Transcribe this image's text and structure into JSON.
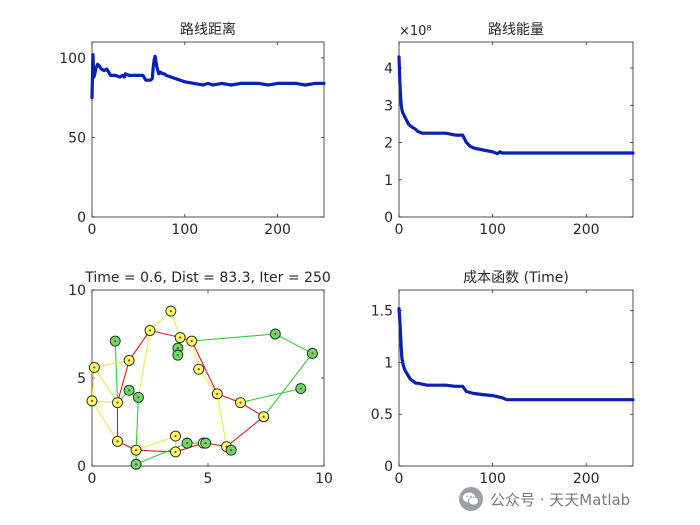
{
  "chart_data": [
    {
      "type": "line",
      "title": "路线距离",
      "xlim": [
        0,
        250
      ],
      "ylim": [
        0,
        110
      ],
      "xticks": [
        0,
        100,
        200
      ],
      "yticks": [
        0,
        50,
        100
      ],
      "xtick_labels": [
        "0",
        "100",
        "200"
      ],
      "ytick_labels": [
        "0",
        "50",
        "100"
      ],
      "exponent_label": "",
      "color": "#0a1fb5",
      "series": [
        {
          "x": [
            0,
            1,
            2,
            3,
            4,
            6,
            8,
            10,
            13,
            16,
            20,
            25,
            30,
            33,
            35,
            36,
            40,
            45,
            50,
            55,
            58,
            60,
            63,
            65,
            66,
            67,
            68,
            70,
            72,
            74,
            76,
            78,
            80,
            85,
            90,
            100,
            110,
            120,
            125,
            130,
            140,
            150,
            160,
            170,
            180,
            190,
            200,
            210,
            220,
            230,
            240,
            250
          ],
          "y": [
            75,
            102,
            88,
            90,
            93,
            96,
            95,
            93,
            92,
            93,
            89,
            89,
            88,
            89,
            88,
            90,
            89,
            89,
            89,
            89,
            86,
            86,
            86,
            87,
            94,
            99,
            101,
            94,
            90,
            91,
            90,
            90,
            89,
            88,
            87,
            85,
            84,
            83,
            84,
            83,
            84,
            83,
            84,
            84,
            84,
            83,
            84,
            84,
            84,
            83,
            84,
            84
          ]
        }
      ]
    },
    {
      "type": "line",
      "title": "路线能量",
      "xlim": [
        0,
        250
      ],
      "ylim": [
        0,
        4.7
      ],
      "xticks": [
        0,
        100,
        200
      ],
      "yticks": [
        0,
        1,
        2,
        3,
        4
      ],
      "xtick_labels": [
        "0",
        "100",
        "200"
      ],
      "ytick_labels": [
        "0",
        "1",
        "2",
        "3",
        "4"
      ],
      "exponent_label": "×10⁸",
      "color": "#0a1fb5",
      "series": [
        {
          "x": [
            0,
            1,
            2,
            3,
            4,
            5,
            6,
            8,
            10,
            12,
            15,
            18,
            20,
            25,
            30,
            35,
            40,
            50,
            60,
            68,
            72,
            76,
            80,
            90,
            100,
            105,
            108,
            110,
            115,
            120,
            150,
            200,
            250
          ],
          "y": [
            4.3,
            3.6,
            3.1,
            2.9,
            2.8,
            2.75,
            2.7,
            2.6,
            2.5,
            2.45,
            2.4,
            2.35,
            2.3,
            2.25,
            2.25,
            2.25,
            2.25,
            2.25,
            2.2,
            2.2,
            2.0,
            1.9,
            1.85,
            1.8,
            1.75,
            1.7,
            1.75,
            1.72,
            1.72,
            1.72,
            1.72,
            1.72,
            1.72
          ]
        }
      ]
    },
    {
      "type": "scatter",
      "title": "Time = 0.6, Dist = 83.3, Iter = 250",
      "xlim": [
        0,
        10
      ],
      "ylim": [
        0,
        10
      ],
      "xticks": [
        0,
        5,
        10
      ],
      "yticks": [
        0,
        5,
        10
      ],
      "xtick_labels": [
        "0",
        "5",
        "10"
      ],
      "ytick_labels": [
        "0",
        "5",
        "10"
      ],
      "exponent_label": "",
      "points": [
        {
          "x": 0.1,
          "y": 5.6,
          "c": "#ffff66"
        },
        {
          "x": 0.0,
          "y": 3.7,
          "c": "#ffff66"
        },
        {
          "x": 1.0,
          "y": 7.1,
          "c": "#66dd66"
        },
        {
          "x": 1.1,
          "y": 3.6,
          "c": "#ffff66"
        },
        {
          "x": 1.1,
          "y": 1.4,
          "c": "#ffff66"
        },
        {
          "x": 1.6,
          "y": 6.0,
          "c": "#ffff66"
        },
        {
          "x": 1.6,
          "y": 4.3,
          "c": "#66dd66"
        },
        {
          "x": 2.0,
          "y": 3.9,
          "c": "#66dd66"
        },
        {
          "x": 1.9,
          "y": 0.9,
          "c": "#ffff66"
        },
        {
          "x": 1.9,
          "y": 0.1,
          "c": "#66dd66"
        },
        {
          "x": 2.5,
          "y": 7.7,
          "c": "#ffff66"
        },
        {
          "x": 3.4,
          "y": 8.8,
          "c": "#ffff66"
        },
        {
          "x": 3.8,
          "y": 7.3,
          "c": "#ffff66"
        },
        {
          "x": 3.7,
          "y": 6.7,
          "c": "#66dd66"
        },
        {
          "x": 3.7,
          "y": 6.3,
          "c": "#66dd66"
        },
        {
          "x": 4.3,
          "y": 7.1,
          "c": "#ffff66"
        },
        {
          "x": 4.6,
          "y": 5.5,
          "c": "#ffff66"
        },
        {
          "x": 3.6,
          "y": 1.7,
          "c": "#ffff66"
        },
        {
          "x": 3.6,
          "y": 0.8,
          "c": "#ffff66"
        },
        {
          "x": 4.1,
          "y": 1.3,
          "c": "#66dd66"
        },
        {
          "x": 4.8,
          "y": 1.3,
          "c": "#ffff66"
        },
        {
          "x": 4.9,
          "y": 1.3,
          "c": "#66dd66"
        },
        {
          "x": 5.4,
          "y": 4.1,
          "c": "#ffff66"
        },
        {
          "x": 5.8,
          "y": 1.1,
          "c": "#ffff66"
        },
        {
          "x": 6.0,
          "y": 0.9,
          "c": "#66dd66"
        },
        {
          "x": 6.4,
          "y": 3.6,
          "c": "#ffff66"
        },
        {
          "x": 7.4,
          "y": 2.8,
          "c": "#ffff66"
        },
        {
          "x": 7.9,
          "y": 7.5,
          "c": "#66dd66"
        },
        {
          "x": 9.0,
          "y": 4.4,
          "c": "#66dd66"
        },
        {
          "x": 9.5,
          "y": 6.4,
          "c": "#66dd66"
        }
      ],
      "edges": [
        {
          "c": "#d62020",
          "pts": [
            [
              1.1,
              1.4
            ],
            [
              1.1,
              3.6
            ],
            [
              1.6,
              6.0
            ],
            [
              2.5,
              7.7
            ],
            [
              3.8,
              7.3
            ],
            [
              4.3,
              7.1
            ],
            [
              5.4,
              4.1
            ],
            [
              6.4,
              3.6
            ],
            [
              7.4,
              2.8
            ],
            [
              5.8,
              1.1
            ],
            [
              4.9,
              1.3
            ],
            [
              4.8,
              1.3
            ],
            [
              3.6,
              0.8
            ],
            [
              1.9,
              0.9
            ],
            [
              1.1,
              1.4
            ]
          ]
        },
        {
          "c": "#33cc33",
          "pts": [
            [
              4.3,
              7.1
            ],
            [
              7.9,
              7.5
            ],
            [
              9.5,
              6.4
            ],
            [
              7.4,
              2.8
            ]
          ]
        },
        {
          "c": "#33cc33",
          "pts": [
            [
              6.4,
              3.6
            ],
            [
              9.0,
              4.4
            ]
          ]
        },
        {
          "c": "#33cc33",
          "pts": [
            [
              3.8,
              7.3
            ],
            [
              3.7,
              6.7
            ],
            [
              3.7,
              6.3
            ]
          ]
        },
        {
          "c": "#33cc33",
          "pts": [
            [
              1.0,
              7.1
            ],
            [
              1.1,
              3.6
            ],
            [
              1.6,
              4.3
            ],
            [
              2.0,
              3.9
            ],
            [
              1.9,
              0.9
            ],
            [
              1.9,
              0.1
            ],
            [
              4.1,
              1.3
            ],
            [
              4.8,
              1.3
            ]
          ]
        },
        {
          "c": "#33cc33",
          "pts": [
            [
              5.8,
              1.1
            ],
            [
              6.0,
              0.9
            ]
          ]
        },
        {
          "c": "#e8e84a",
          "pts": [
            [
              1.6,
              6.0
            ],
            [
              0.1,
              5.6
            ],
            [
              0.0,
              3.7
            ],
            [
              1.1,
              1.4
            ]
          ]
        },
        {
          "c": "#e8e84a",
          "pts": [
            [
              0.1,
              5.6
            ],
            [
              1.1,
              3.6
            ],
            [
              0.0,
              3.7
            ]
          ]
        },
        {
          "c": "#e8e84a",
          "pts": [
            [
              2.5,
              7.7
            ],
            [
              3.4,
              8.8
            ],
            [
              3.8,
              7.3
            ]
          ]
        },
        {
          "c": "#e8e84a",
          "pts": [
            [
              4.3,
              7.1
            ],
            [
              4.6,
              5.5
            ],
            [
              5.4,
              4.1
            ],
            [
              5.8,
              1.1
            ]
          ]
        },
        {
          "c": "#e8e84a",
          "pts": [
            [
              1.9,
              0.9
            ],
            [
              3.6,
              1.7
            ],
            [
              3.6,
              0.8
            ]
          ]
        },
        {
          "c": "#e8e84a",
          "pts": [
            [
              2.0,
              3.9
            ],
            [
              2.5,
              7.7
            ]
          ]
        }
      ]
    },
    {
      "type": "line",
      "title": "成本函数 (Time)",
      "xlim": [
        0,
        250
      ],
      "ylim": [
        0,
        1.7
      ],
      "xticks": [
        0,
        100,
        200
      ],
      "yticks": [
        0,
        0.5,
        1,
        1.5
      ],
      "xtick_labels": [
        "0",
        "100",
        "200"
      ],
      "ytick_labels": [
        "0",
        "0.5",
        "1",
        "1.5"
      ],
      "exponent_label": "",
      "color": "#0a1fb5",
      "series": [
        {
          "x": [
            0,
            1,
            2,
            3,
            4,
            5,
            6,
            8,
            10,
            12,
            15,
            18,
            20,
            25,
            30,
            40,
            50,
            60,
            68,
            72,
            76,
            80,
            90,
            100,
            110,
            115,
            120,
            150,
            200,
            250
          ],
          "y": [
            1.52,
            1.4,
            1.2,
            1.05,
            1.0,
            0.96,
            0.93,
            0.9,
            0.87,
            0.84,
            0.82,
            0.8,
            0.8,
            0.79,
            0.78,
            0.78,
            0.78,
            0.77,
            0.77,
            0.72,
            0.71,
            0.7,
            0.69,
            0.68,
            0.66,
            0.64,
            0.64,
            0.64,
            0.64,
            0.64
          ]
        }
      ]
    }
  ],
  "watermark": {
    "text": "公众号 · 天天Matlab",
    "icon": "wechat-icon"
  }
}
